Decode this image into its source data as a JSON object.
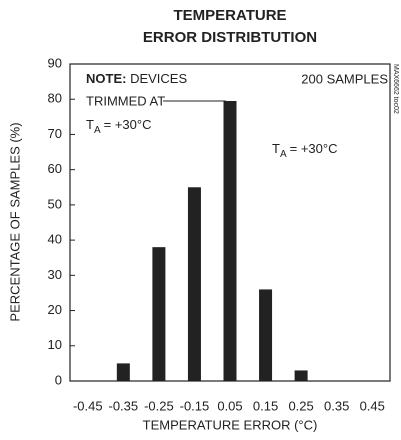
{
  "chart_data": {
    "type": "bar",
    "title_lines": [
      "TEMPERATURE",
      "ERROR DISTRIBTUTION"
    ],
    "x_label": "TEMPERATURE ERROR (°C)",
    "y_label": "PERCENTAGE OF SAMPLES (%)",
    "categories": [
      "-0.45",
      "-0.35",
      "-0.25",
      "-0.15",
      "0.05",
      "0.15",
      "0.25",
      "0.35",
      "0.45"
    ],
    "values": [
      0,
      5,
      38,
      55,
      79.5,
      26,
      3,
      0,
      0
    ],
    "color": "#222222",
    "ylim": [
      0,
      90
    ],
    "yticks": [
      0,
      10,
      20,
      30,
      40,
      50,
      60,
      70,
      80,
      90
    ],
    "annotations": {
      "note_label": "NOTE:",
      "note_text": "DEVICES",
      "trimmed": "TRIMMED AT",
      "condition": {
        "symbol": "T",
        "subscript": "A",
        "value": "= +30°C"
      },
      "samples": "200 SAMPLES",
      "figure_id": "MAX6662 toc02"
    }
  }
}
